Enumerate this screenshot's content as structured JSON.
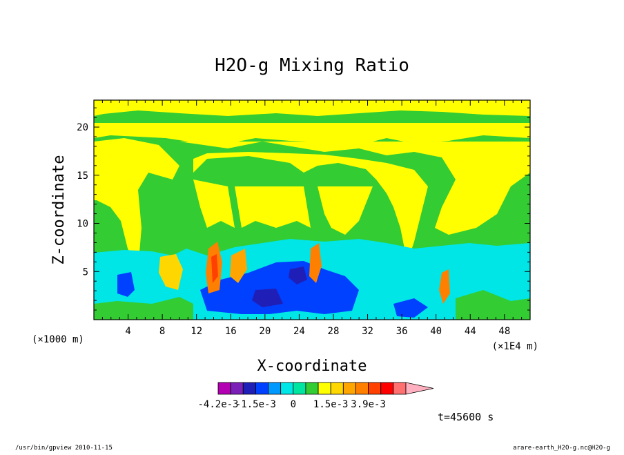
{
  "chart_data": {
    "type": "heatmap",
    "title": "H2O-g Mixing Ratio",
    "xlabel": "X-coordinate",
    "ylabel": "Z-coordinate",
    "x_unit_left": "(×1000 m)",
    "x_unit_right": "(×1E4 m)",
    "xticks": [
      "4",
      "8",
      "12",
      "16",
      "20",
      "24",
      "28",
      "32",
      "36",
      "40",
      "44",
      "48"
    ],
    "yticks": [
      "5",
      "10",
      "15",
      "20"
    ],
    "xlim": [
      0,
      51
    ],
    "ylim": [
      0,
      22.8
    ],
    "grid": false,
    "colorbar": {
      "colors": [
        "#b300b3",
        "#7a1fb8",
        "#1f1fb8",
        "#0040ff",
        "#0099ff",
        "#00e6e6",
        "#00e6a0",
        "#33cc33",
        "#ffff00",
        "#ffd700",
        "#ffa500",
        "#ff8000",
        "#ff4000",
        "#ff0000",
        "#ff7070",
        "#ffb0c0"
      ],
      "tick_labels": [
        "-4.2e-3",
        "-1.5e-3",
        "0",
        "1.5e-3",
        "3.9e-3"
      ]
    },
    "time_label": "t=45600 s",
    "footer_left": "/usr/bin/gpview   2010-11-15",
    "footer_right": "arare-earth_H2O-g.nc@H2O-g"
  }
}
